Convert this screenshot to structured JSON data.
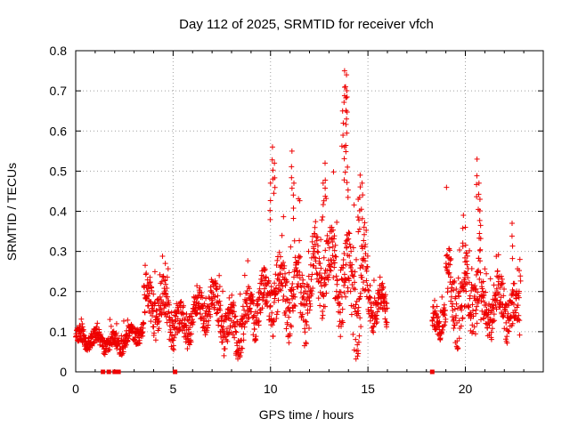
{
  "chart_data": {
    "type": "scatter",
    "title": "Day 112 of 2025, SRMTID for receiver vfch",
    "xlabel": "GPS time / hours",
    "ylabel": "SRMTID / TECUs",
    "xlim": [
      0,
      24
    ],
    "ylim": [
      0,
      0.8
    ],
    "x_ticks": [
      0,
      5,
      10,
      15,
      20
    ],
    "y_ticks": [
      0,
      0.1,
      0.2,
      0.3,
      0.4,
      0.5,
      0.6,
      0.7,
      0.8
    ],
    "x_tick_labels": [
      "0",
      "5",
      "10",
      "15",
      "20"
    ],
    "y_tick_labels": [
      "0",
      "0.1",
      "0.2",
      "0.3",
      "0.4",
      "0.5",
      "0.6",
      "0.7",
      "0.8"
    ],
    "grid": true,
    "marker": "+",
    "marker_color": "#ee0000",
    "series": [
      {
        "name": "SRMTID",
        "segments": [
          {
            "x_start": 0.0,
            "x_end": 1.2,
            "baseline": [
              0.08,
              0.07
            ],
            "spread": 0.02
          },
          {
            "x_start": 1.2,
            "x_end": 3.5,
            "baseline": [
              0.07,
              0.1
            ],
            "spread": 0.02
          },
          {
            "x_start": 3.5,
            "x_end": 5.2,
            "baseline": [
              0.14,
              0.16
            ],
            "spread": 0.05
          },
          {
            "x_start": 5.2,
            "x_end": 7.5,
            "baseline": [
              0.13,
              0.15
            ],
            "spread": 0.04
          },
          {
            "x_start": 7.5,
            "x_end": 10.0,
            "baseline": [
              0.12,
              0.16
            ],
            "spread": 0.05
          },
          {
            "x_start": 10.0,
            "x_end": 11.5,
            "baseline": [
              0.18,
              0.24
            ],
            "spread": 0.07
          },
          {
            "x_start": 11.5,
            "x_end": 13.5,
            "baseline": [
              0.2,
              0.24
            ],
            "spread": 0.08
          },
          {
            "x_start": 13.5,
            "x_end": 15.0,
            "baseline": [
              0.25,
              0.22
            ],
            "spread": 0.09
          },
          {
            "x_start": 15.0,
            "x_end": 16.0,
            "baseline": [
              0.16,
              0.13
            ],
            "spread": 0.04
          },
          {
            "x_start": 18.3,
            "x_end": 19.0,
            "baseline": [
              0.1,
              0.13
            ],
            "spread": 0.03
          },
          {
            "x_start": 19.0,
            "x_end": 20.8,
            "baseline": [
              0.17,
              0.24
            ],
            "spread": 0.07
          },
          {
            "x_start": 20.8,
            "x_end": 22.8,
            "baseline": [
              0.14,
              0.15
            ],
            "spread": 0.05
          }
        ],
        "spikes": [
          {
            "x": 4.6,
            "y": 0.27
          },
          {
            "x": 10.1,
            "y": 0.56
          },
          {
            "x": 10.2,
            "y": 0.52
          },
          {
            "x": 10.0,
            "y": 0.47
          },
          {
            "x": 11.1,
            "y": 0.55
          },
          {
            "x": 11.2,
            "y": 0.47
          },
          {
            "x": 12.8,
            "y": 0.52
          },
          {
            "x": 12.7,
            "y": 0.47
          },
          {
            "x": 13.8,
            "y": 0.75
          },
          {
            "x": 13.9,
            "y": 0.74
          },
          {
            "x": 13.85,
            "y": 0.71
          },
          {
            "x": 13.7,
            "y": 0.65
          },
          {
            "x": 13.9,
            "y": 0.63
          },
          {
            "x": 13.8,
            "y": 0.56
          },
          {
            "x": 13.95,
            "y": 0.51
          },
          {
            "x": 14.6,
            "y": 0.49
          },
          {
            "x": 14.7,
            "y": 0.47
          },
          {
            "x": 14.5,
            "y": 0.43
          },
          {
            "x": 20.6,
            "y": 0.53
          },
          {
            "x": 20.7,
            "y": 0.47
          },
          {
            "x": 20.75,
            "y": 0.43
          },
          {
            "x": 19.9,
            "y": 0.39
          },
          {
            "x": 20.0,
            "y": 0.36
          },
          {
            "x": 22.4,
            "y": 0.37
          },
          {
            "x": 22.8,
            "y": 0.28
          }
        ],
        "zero_points": [
          1.4,
          1.7,
          2.0,
          2.1,
          2.2,
          5.1,
          18.3
        ]
      }
    ]
  }
}
